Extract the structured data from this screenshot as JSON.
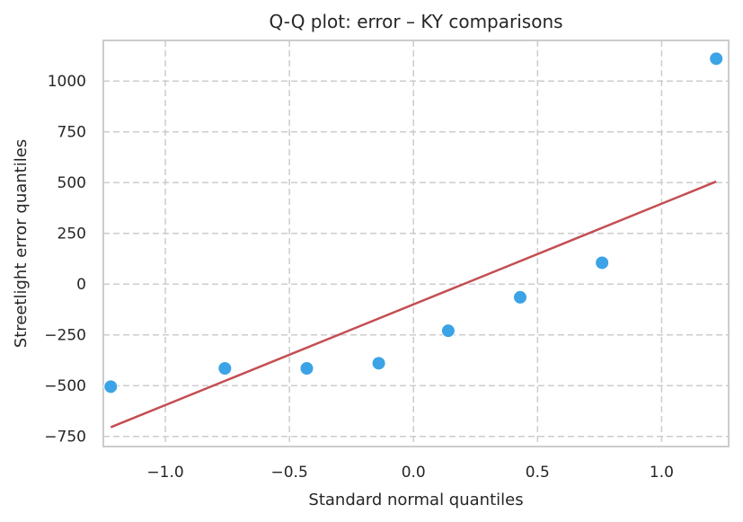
{
  "chart_data": {
    "type": "scatter",
    "title": "Q-Q plot: error – KY comparisons",
    "xlabel": "Standard normal quantiles",
    "ylabel": "Streetlight error quantiles",
    "xlim": [
      -1.25,
      1.27
    ],
    "ylim": [
      -800,
      1200
    ],
    "xticks": [
      -1.0,
      -0.5,
      0.0,
      0.5,
      1.0
    ],
    "xtick_labels": [
      "−1.0",
      "−0.5",
      "0.0",
      "0.5",
      "1.0"
    ],
    "yticks": [
      -750,
      -500,
      -250,
      0,
      250,
      500,
      750,
      1000
    ],
    "ytick_labels": [
      "−750",
      "−500",
      "−250",
      "0",
      "250",
      "500",
      "750",
      "1000"
    ],
    "grid": true,
    "points": {
      "x": [
        -1.22,
        -0.76,
        -0.43,
        -0.14,
        0.14,
        0.43,
        0.76,
        1.22
      ],
      "y": [
        -505,
        -415,
        -415,
        -390,
        -230,
        -65,
        105,
        1110
      ],
      "color": "#3ba3e6"
    },
    "fit_line": {
      "x": [
        -1.22,
        1.22
      ],
      "y": [
        -705,
        505
      ],
      "color": "#c44e52"
    }
  }
}
